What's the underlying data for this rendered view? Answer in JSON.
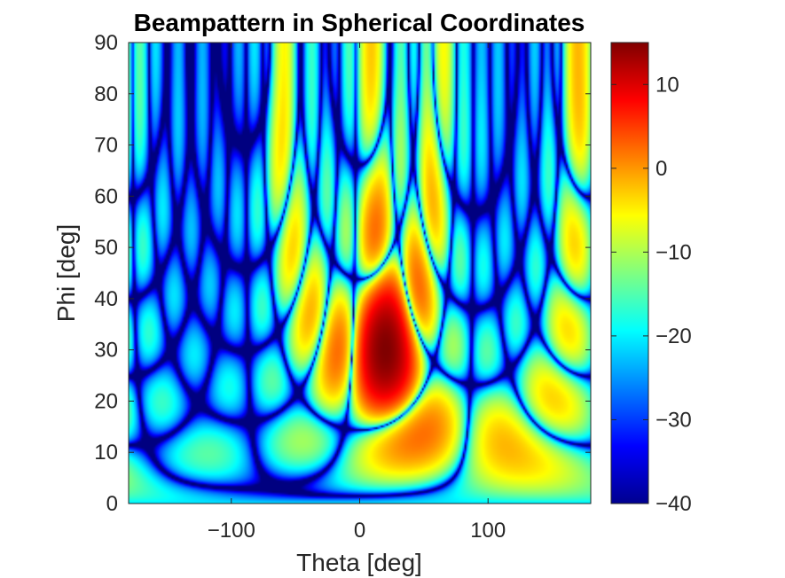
{
  "chart_data": {
    "type": "heatmap",
    "title": "Beampattern in Spherical Coordinates",
    "xlabel": "Theta [deg]",
    "ylabel": "Phi [deg]",
    "xlim": [
      -180,
      180
    ],
    "ylim": [
      0,
      90
    ],
    "x_ticks": [
      -100,
      0,
      100
    ],
    "x_tick_labels": [
      "−100",
      "0",
      "100"
    ],
    "y_ticks": [
      0,
      10,
      20,
      30,
      40,
      50,
      60,
      70,
      80,
      90
    ],
    "y_tick_labels": [
      "0",
      "10",
      "20",
      "30",
      "40",
      "50",
      "60",
      "70",
      "80",
      "90"
    ],
    "colorbar": {
      "colormap": "jet",
      "limits": [
        -40,
        15
      ],
      "ticks": [
        10,
        0,
        -10,
        -20,
        -30,
        -40
      ],
      "tick_labels": [
        "10",
        "0",
        "−10",
        "−20",
        "−30",
        "−40"
      ]
    },
    "grid": false
  }
}
